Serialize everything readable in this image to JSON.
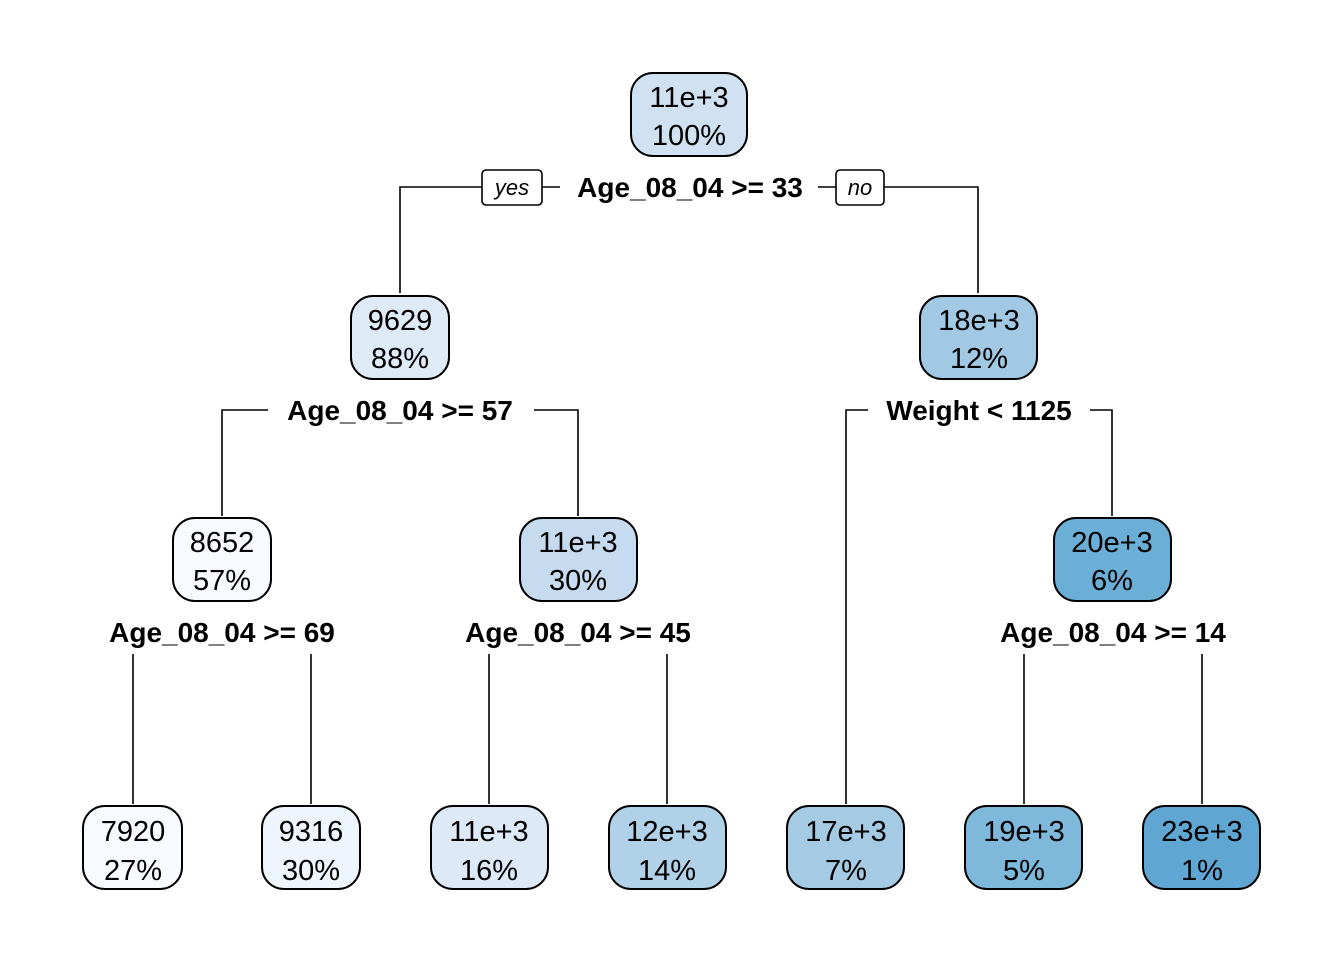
{
  "tree": {
    "branch_labels": {
      "yes": "yes",
      "no": "no"
    },
    "nodes": [
      {
        "id": "root",
        "value": "11e+3",
        "percent": "100%",
        "fill": "#d0e2f2",
        "split": "Age_08_04 >= 33"
      },
      {
        "id": "n-left",
        "value": "9629",
        "percent": "88%",
        "fill": "#deebf7",
        "split": "Age_08_04 >= 57"
      },
      {
        "id": "n-right",
        "value": "18e+3",
        "percent": "12%",
        "fill": "#a1c9e3",
        "split": "Weight < 1125"
      },
      {
        "id": "n-ll",
        "value": "8652",
        "percent": "57%",
        "fill": "#f7fbff",
        "split": "Age_08_04 >= 69"
      },
      {
        "id": "n-lr",
        "value": "11e+3",
        "percent": "30%",
        "fill": "#c6dbef",
        "split": "Age_08_04 >= 45"
      },
      {
        "id": "n-rr",
        "value": "20e+3",
        "percent": "6%",
        "fill": "#6baed6",
        "split": "Age_08_04 >= 14"
      },
      {
        "id": "leaf-1",
        "value": "7920",
        "percent": "27%",
        "fill": "#f7fbff"
      },
      {
        "id": "leaf-2",
        "value": "9316",
        "percent": "30%",
        "fill": "#eef5fc"
      },
      {
        "id": "leaf-3",
        "value": "11e+3",
        "percent": "16%",
        "fill": "#dde9f6"
      },
      {
        "id": "leaf-4",
        "value": "12e+3",
        "percent": "14%",
        "fill": "#b0d1e8"
      },
      {
        "id": "leaf-5",
        "value": "17e+3",
        "percent": "7%",
        "fill": "#a5cbe4"
      },
      {
        "id": "leaf-6",
        "value": "19e+3",
        "percent": "5%",
        "fill": "#7eb8db"
      },
      {
        "id": "leaf-7",
        "value": "23e+3",
        "percent": "1%",
        "fill": "#60a6d3"
      }
    ]
  }
}
